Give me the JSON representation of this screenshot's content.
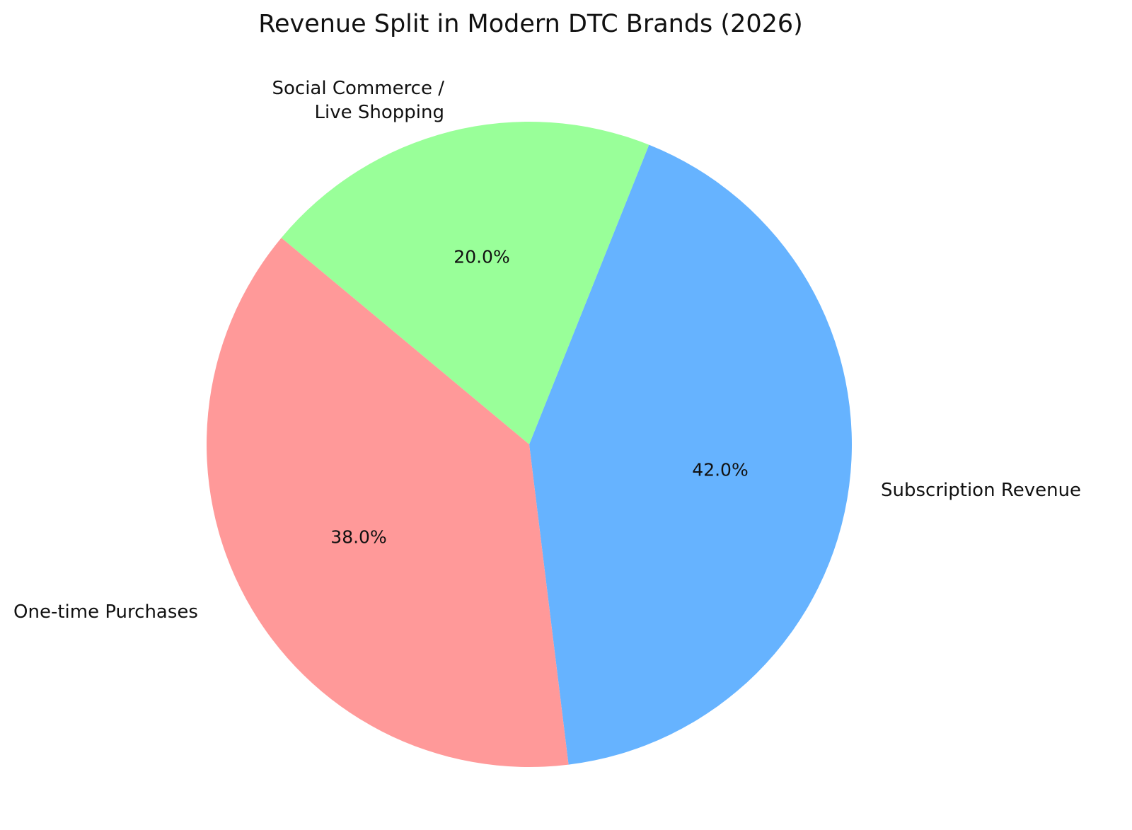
{
  "title": "Revenue Split in Modern DTC Brands (2026)",
  "chart_data": {
    "type": "pie",
    "title": "Revenue Split in Modern DTC Brands (2026)",
    "categories": [
      "Subscription Revenue",
      "Social Commerce / Live Shopping",
      "One-time Purchases"
    ],
    "values": [
      42.0,
      20.0,
      38.0
    ],
    "labels_pct": [
      "42.0%",
      "20.0%",
      "38.0%"
    ],
    "colors": [
      "#66b3ff",
      "#99ff99",
      "#ff9999"
    ],
    "legend": "none",
    "start_angle_deg": -83
  },
  "labels": {
    "subscription": "Subscription Revenue",
    "social_line1": "Social Commerce /",
    "social_line2": "Live Shopping",
    "onetime": "One-time Purchases"
  },
  "pcts": {
    "subscription": "42.0%",
    "social": "20.0%",
    "onetime": "38.0%"
  }
}
